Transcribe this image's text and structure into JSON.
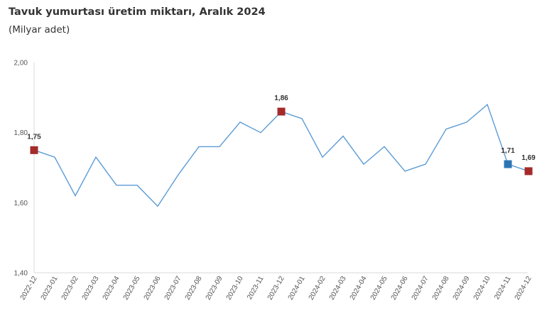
{
  "chart_data": {
    "type": "line",
    "title": "Tavuk yumurtası üretim miktarı, Aralık 2024",
    "subtitle": "(Milyar adet)",
    "xlabel": "",
    "ylabel": "",
    "ylim": [
      1.4,
      2.0
    ],
    "yticks": [
      "1,40",
      "1,60",
      "1,80",
      "2,00"
    ],
    "grid": false,
    "categories": [
      "2022-12",
      "2023-01",
      "2023-02",
      "2023-03",
      "2023-04",
      "2023-05",
      "2023-06",
      "2023-07",
      "2023-08",
      "2023-09",
      "2023-10",
      "2023-11",
      "2023-12",
      "2024-01",
      "2024-02",
      "2024-03",
      "2024-04",
      "2024-05",
      "2024-06",
      "2024-07",
      "2024-08",
      "2024-09",
      "2024-10",
      "2024-11",
      "2024-12"
    ],
    "series": [
      {
        "values": [
          1.75,
          1.73,
          1.62,
          1.73,
          1.65,
          1.65,
          1.59,
          1.68,
          1.76,
          1.76,
          1.83,
          1.8,
          1.86,
          1.84,
          1.73,
          1.79,
          1.71,
          1.76,
          1.69,
          1.71,
          1.81,
          1.83,
          1.88,
          1.71,
          1.69
        ],
        "color": "#5b9bd5"
      }
    ],
    "highlights": [
      {
        "index": 0,
        "label": "1,75",
        "color": "#a52a2a"
      },
      {
        "index": 12,
        "label": "1,86",
        "color": "#a52a2a"
      },
      {
        "index": 23,
        "label": "1,71",
        "color": "#2e75b6"
      },
      {
        "index": 24,
        "label": "1,69",
        "color": "#a52a2a"
      }
    ]
  }
}
